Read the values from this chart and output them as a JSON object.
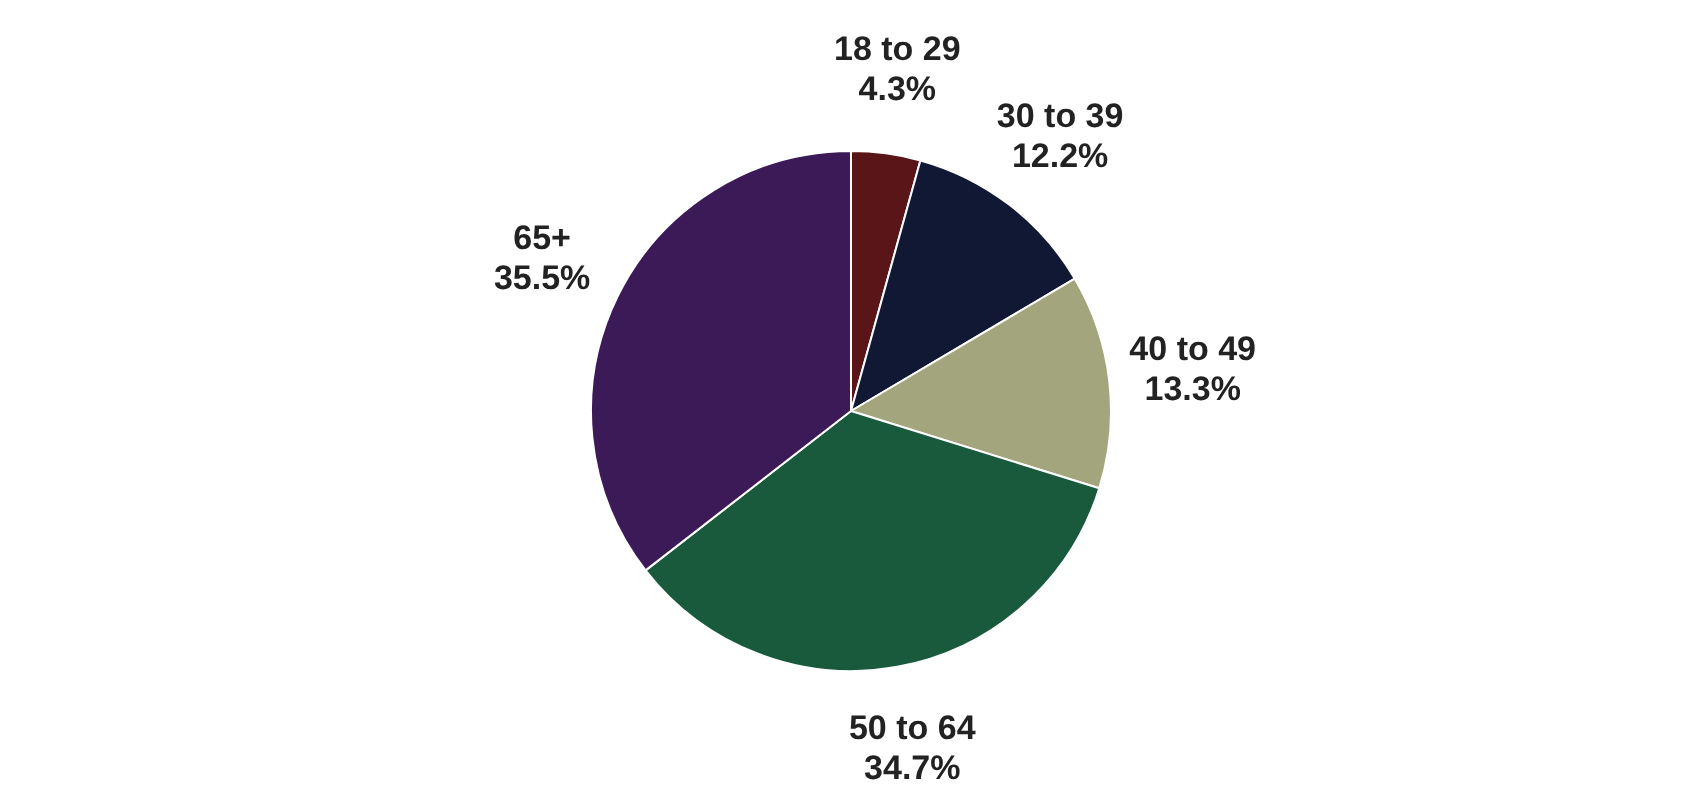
{
  "chart_data": {
    "type": "pie",
    "categories": [
      "18 to 29",
      "30 to 39",
      "40 to 49",
      "50 to 64",
      "65+"
    ],
    "values": [
      4.3,
      12.2,
      13.3,
      34.7,
      35.5
    ],
    "value_labels": [
      "4.3%",
      "12.2%",
      "13.3%",
      "34.7%",
      "35.5%"
    ],
    "colors": [
      "#5a1518",
      "#111833",
      "#a3a67c",
      "#1a5a3c",
      "#3c1a58"
    ],
    "legend": false
  }
}
